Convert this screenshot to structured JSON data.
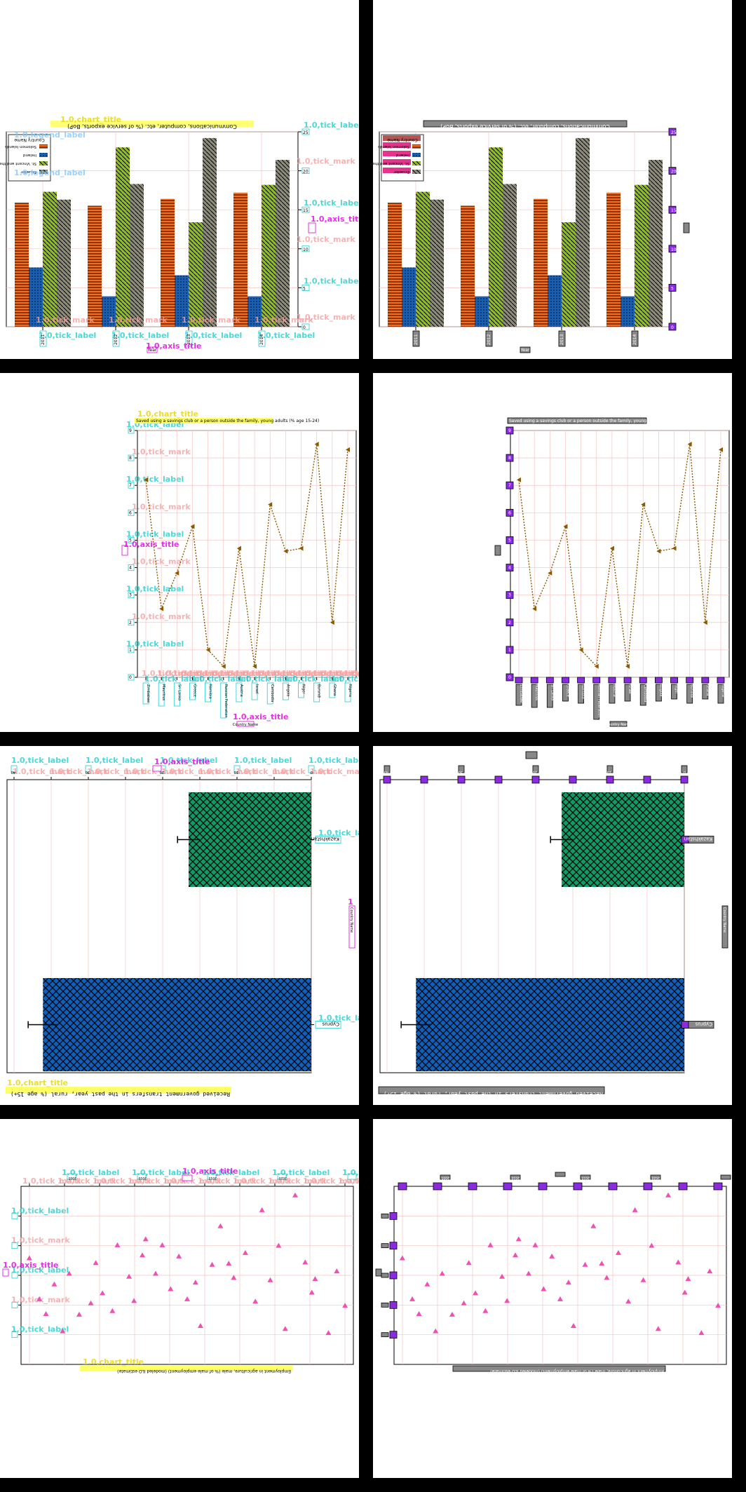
{
  "layout_note": "",
  "chart_data": [
    {
      "type": "bar",
      "title": "Communications, computer, etc. (% of service exports, BoP)",
      "xlabel": "Year",
      "ylabel": "",
      "categories": [
        "2011",
        "2012",
        "2013",
        "2014"
      ],
      "series": [
        {
          "name": "Solomon Islands",
          "color": "#ff6a13",
          "hatch": "hlines",
          "values": [
            15.9,
            15.5,
            16.4,
            17.2
          ]
        },
        {
          "name": "Ireland",
          "color": "#1b5fb3",
          "hatch": "dots",
          "values": [
            7.6,
            3.9,
            6.6,
            3.9
          ]
        },
        {
          "name": "St. Vincent and the Grenadines",
          "color": "#8fbc1e",
          "hatch": "diag",
          "values": [
            17.3,
            23.0,
            13.4,
            18.2
          ]
        },
        {
          "name": "Ecuador",
          "color": "#8c8c78",
          "hatch": "diag",
          "values": [
            16.3,
            18.3,
            24.2,
            21.4
          ]
        }
      ],
      "ylim": [
        0,
        25
      ],
      "ticks": [
        "0",
        "5",
        "10",
        "15",
        "20",
        "25"
      ],
      "legend_title": "Country Name",
      "legend_position": "top-left",
      "grid": true
    },
    {
      "type": "line",
      "title": "Saved using a savings club or a person outside the family, young adults (% age 15-24)",
      "xlabel": "Country Name",
      "ylabel": "",
      "categories": [
        "Zimbabwe",
        "Mauritius",
        "Sri Lanka",
        "Greece",
        "Namibia",
        "Russian Federation",
        "Austria",
        "Israel",
        "Cambodia",
        "Angola",
        "Niger",
        "Burundi",
        "Ghana",
        "Nigeria"
      ],
      "values": [
        7.2,
        2.5,
        3.8,
        5.5,
        1.0,
        0.4,
        4.7,
        0.4,
        6.3,
        4.6,
        4.7,
        8.5,
        2.0,
        8.3
      ],
      "ylim": [
        0,
        9
      ],
      "ticks": [
        "0",
        "1",
        "2",
        "3",
        "4",
        "5",
        "6",
        "7",
        "8",
        "9"
      ],
      "color": "#8b5a00",
      "grid": true
    },
    {
      "type": "bar",
      "orientation": "horizontal",
      "title": "Received government transfers in the past year, rural (% age 15+)",
      "ylabel": "Country Name",
      "categories": [
        "Kazakhstan",
        "Cyprus"
      ],
      "values": [
        16.5,
        36.1
      ],
      "errors": [
        1.5,
        2.0
      ],
      "colors": [
        "#119966",
        "#1060bb"
      ],
      "xlim": [
        0,
        40
      ],
      "ticks": [
        "40",
        "35",
        "30",
        "25",
        "20",
        "15",
        "10",
        "5",
        "0"
      ],
      "grid": true
    },
    {
      "type": "scatter",
      "title": "Employment in agriculture, male (% of male employment) (modeled ILO estimate)",
      "xlabel": "",
      "ylabel": "",
      "color": "#f050b0",
      "x": [
        2004,
        2004.6,
        2005,
        2005.5,
        2006,
        2006.4,
        2007,
        2007.7,
        2008,
        2008.4,
        2009,
        2009.3,
        2010,
        2010.3,
        2010.8,
        2011,
        2011.6,
        2012,
        2012.5,
        2013,
        2013.5,
        2014,
        2014.3,
        2015,
        2015.5,
        2016,
        2016.3,
        2017,
        2017.6,
        2018,
        2018.5,
        2019,
        2019.4,
        2020,
        2020.6,
        2021,
        2021.2,
        2022,
        2022.5,
        2023
      ],
      "y": [
        27.9,
        21.0,
        18.5,
        23.5,
        15.6,
        25.3,
        18.4,
        20.3,
        27.1,
        22.0,
        19.0,
        30.1,
        24.8,
        20.7,
        28.4,
        31.1,
        25.3,
        30.1,
        22.7,
        28.2,
        21.0,
        23.8,
        16.5,
        26.8,
        33.3,
        27.0,
        24.6,
        28.8,
        20.6,
        36.0,
        24.2,
        30.0,
        16.0,
        38.5,
        27.2,
        22.1,
        24.4,
        15.3,
        25.7,
        19.9
      ],
      "ylim": [
        10,
        40
      ],
      "ticks": [
        "2005",
        "2010",
        "2015",
        "2020"
      ],
      "grid": true
    }
  ]
}
